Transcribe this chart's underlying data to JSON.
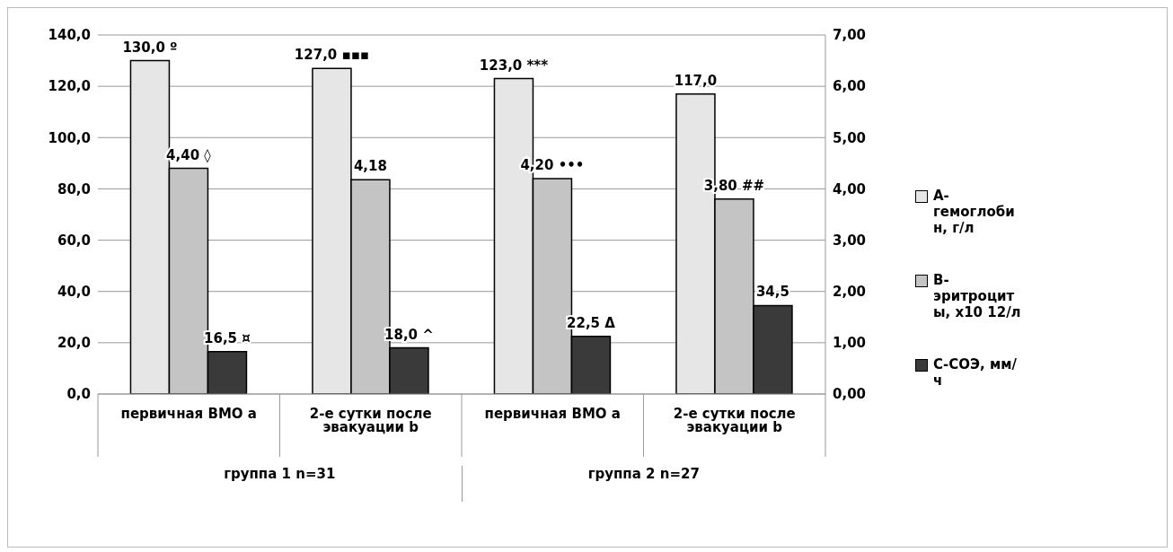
{
  "chart_data": {
    "type": "bar",
    "categories": [
      "первичная ВМО a",
      "2-е сутки после эвакуации b",
      "первичная ВМО a",
      "2-е сутки после эвакуации b"
    ],
    "series": [
      {
        "name": "А-гемоглобин, г/л",
        "color": "#e6e6e6",
        "values": [
          130.0,
          127.0,
          123.0,
          117.0
        ],
        "value_labels": [
          "130,0 º",
          "127,0 ▪▪▪",
          "123,0 ***",
          "117,0"
        ]
      },
      {
        "name": "В-эритроциты, x10 12/л",
        "color": "#c4c4c4",
        "axis": "y2",
        "values": [
          4.4,
          4.18,
          4.2,
          3.8
        ],
        "value_labels": [
          "4,40 ◊",
          "4,18",
          "4,20 •••",
          "3,80 ##"
        ]
      },
      {
        "name": "С-СОЭ, мм/ч",
        "color": "#3a3a3a",
        "values": [
          16.5,
          18.0,
          22.5,
          34.5
        ],
        "value_labels": [
          "16,5 ¤",
          "18,0 ^",
          "22,5 Δ",
          "34,5"
        ]
      }
    ],
    "ylim": [
      0,
      140
    ],
    "yticks": [
      {
        "value": 0,
        "label": "0,0"
      },
      {
        "value": 20,
        "label": "20,0"
      },
      {
        "value": 40,
        "label": "40,0"
      },
      {
        "value": 60,
        "label": "60,0"
      },
      {
        "value": 80,
        "label": "80,0"
      },
      {
        "value": 100,
        "label": "100,0"
      },
      {
        "value": 120,
        "label": "120,0"
      },
      {
        "value": 140,
        "label": "140,0"
      }
    ],
    "y2lim": [
      0,
      7
    ],
    "y2ticks": [
      {
        "value": 0,
        "label": "0,00"
      },
      {
        "value": 1,
        "label": "1,00"
      },
      {
        "value": 2,
        "label": "2,00"
      },
      {
        "value": 3,
        "label": "3,00"
      },
      {
        "value": 4,
        "label": "4,00"
      },
      {
        "value": 5,
        "label": "5,00"
      },
      {
        "value": 6,
        "label": "6,00"
      },
      {
        "value": 7,
        "label": "7,00"
      }
    ],
    "annotations": [
      "группа 1 n=31",
      "группа 2 n=27"
    ],
    "grid": "y",
    "legend": "right"
  }
}
